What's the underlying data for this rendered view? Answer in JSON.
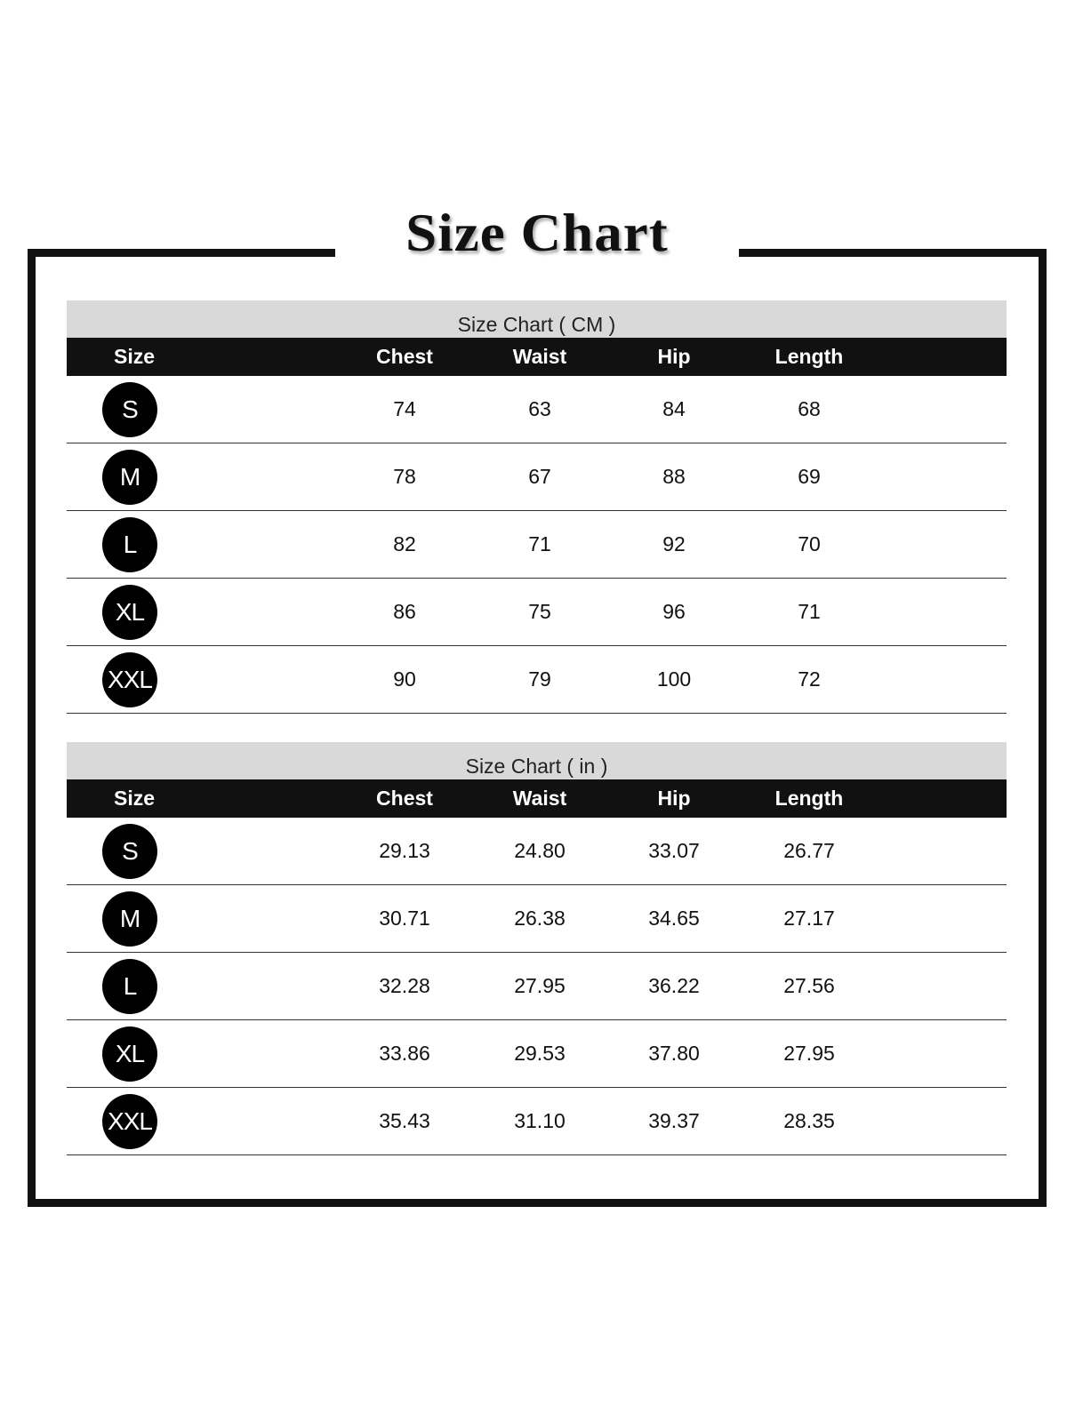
{
  "title": "Size Chart",
  "columns": [
    "Size",
    "Chest",
    "Waist",
    "Hip",
    "Length"
  ],
  "tables": [
    {
      "caption": "Size Chart ( CM )",
      "rows": [
        [
          "S",
          "74",
          "63",
          "84",
          "68"
        ],
        [
          "M",
          "78",
          "67",
          "88",
          "69"
        ],
        [
          "L",
          "82",
          "71",
          "92",
          "70"
        ],
        [
          "XL",
          "86",
          "75",
          "96",
          "71"
        ],
        [
          "XXL",
          "90",
          "79",
          "100",
          "72"
        ]
      ]
    },
    {
      "caption": "Size Chart ( in )",
      "rows": [
        [
          "S",
          "29.13",
          "24.80",
          "33.07",
          "26.77"
        ],
        [
          "M",
          "30.71",
          "26.38",
          "34.65",
          "27.17"
        ],
        [
          "L",
          "32.28",
          "27.95",
          "36.22",
          "27.56"
        ],
        [
          "XL",
          "33.86",
          "29.53",
          "37.80",
          "27.95"
        ],
        [
          "XXL",
          "35.43",
          "31.10",
          "39.37",
          "28.35"
        ]
      ]
    }
  ]
}
